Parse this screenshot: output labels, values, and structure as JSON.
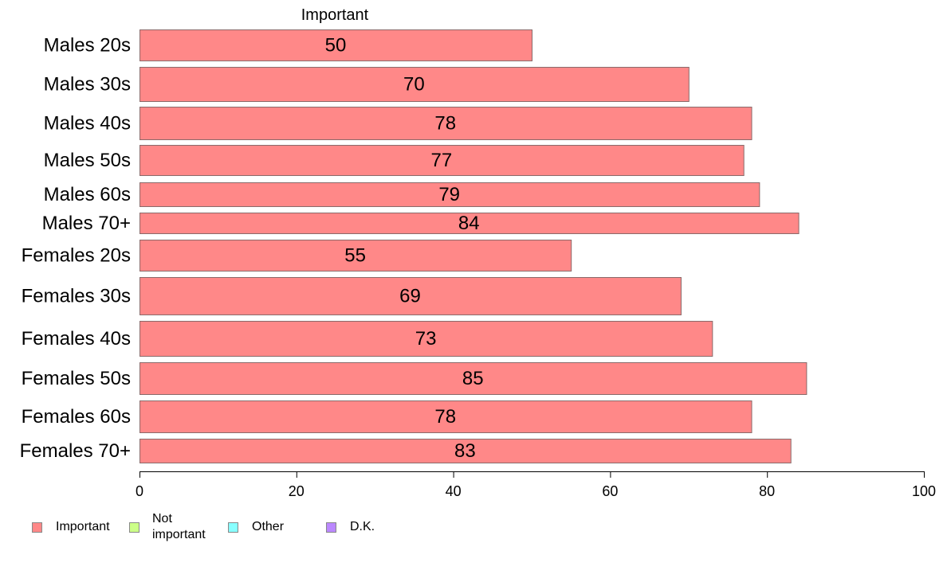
{
  "chart_data": {
    "type": "bar",
    "orientation": "horizontal",
    "column_title": "Important",
    "categories": [
      "Males 20s",
      "Males 30s",
      "Males 40s",
      "Males 50s",
      "Males 60s",
      "Males 70+",
      "Females 20s",
      "Females 30s",
      "Females 40s",
      "Females 50s",
      "Females 60s",
      "Females 70+"
    ],
    "series": [
      {
        "name": "Important",
        "values": [
          50,
          70,
          78,
          77,
          79,
          84,
          55,
          69,
          73,
          85,
          78,
          83
        ],
        "color": "#ff8888"
      }
    ],
    "data_labels": [
      "50",
      "70",
      "78",
      "77",
      "79",
      "84",
      "55",
      "69",
      "73",
      "85",
      "78",
      "83"
    ],
    "xlim": [
      0,
      100
    ],
    "x_ticks": [
      "0",
      "20",
      "40",
      "60",
      "80",
      "100"
    ],
    "grid": false,
    "legend": {
      "placement": "bottom-left",
      "entries": [
        {
          "label": "Important",
          "color": "#ff8888"
        },
        {
          "label": "Not\nimportant",
          "color": "#ccff88"
        },
        {
          "label": "Other",
          "color": "#88ffff"
        },
        {
          "label": "D.K.",
          "color": "#bb88ff"
        }
      ]
    }
  }
}
